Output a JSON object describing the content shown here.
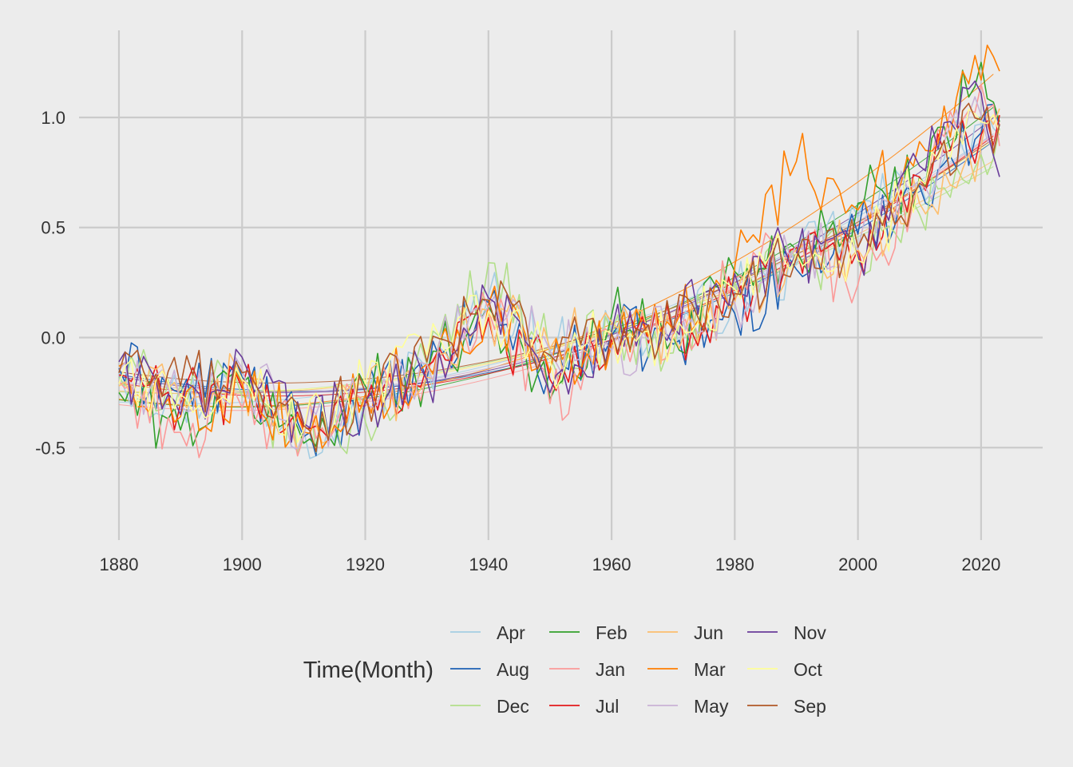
{
  "chart_data": {
    "type": "line",
    "title": "",
    "xlabel": "",
    "ylabel": "",
    "x_ticks": [
      1880,
      1900,
      1920,
      1940,
      1960,
      1980,
      2000,
      2020
    ],
    "y_ticks": [
      -0.5,
      0.0,
      0.5,
      1.0
    ],
    "y_tick_labels": [
      "-0.5",
      "0.0",
      "0.5",
      "1.0"
    ],
    "xlim": [
      1873,
      2030
    ],
    "ylim": [
      -0.92,
      1.41
    ],
    "grid": true,
    "legend": {
      "title": "Time(Month)",
      "position": "bottom",
      "columns": 4
    },
    "trend_lines": "smoothed quadratic fit per month series (thin lines)",
    "series": [
      {
        "name": "Apr",
        "color": "#a6cee3",
        "x": [
          1880,
          1890,
          1900,
          1910,
          1920,
          1930,
          1940,
          1950,
          1960,
          1970,
          1980,
          1990,
          2000,
          2010,
          2020,
          2023
        ],
        "values": [
          -0.16,
          -0.29,
          -0.21,
          -0.42,
          -0.27,
          -0.14,
          0.19,
          -0.06,
          0.03,
          0.06,
          0.19,
          0.33,
          0.55,
          0.71,
          0.97,
          0.92
        ]
      },
      {
        "name": "Aug",
        "color": "#1f61b4",
        "x": [
          1880,
          1890,
          1900,
          1910,
          1920,
          1930,
          1940,
          1950,
          1960,
          1970,
          1980,
          1990,
          2000,
          2010,
          2020,
          2023
        ],
        "values": [
          -0.14,
          -0.25,
          -0.18,
          -0.45,
          -0.28,
          -0.19,
          0.16,
          -0.15,
          0.01,
          -0.03,
          0.11,
          0.31,
          0.47,
          0.69,
          0.93,
          0.96
        ]
      },
      {
        "name": "Dec",
        "color": "#b2df8a",
        "x": [
          1880,
          1890,
          1900,
          1910,
          1920,
          1930,
          1940,
          1950,
          1960,
          1970,
          1980,
          1990,
          2000,
          2010,
          2020,
          2023
        ],
        "values": [
          -0.18,
          -0.21,
          -0.27,
          -0.44,
          -0.38,
          -0.12,
          0.34,
          -0.08,
          0.02,
          -0.07,
          0.25,
          0.36,
          0.35,
          0.56,
          0.83,
          0.95
        ]
      },
      {
        "name": "Feb",
        "color": "#33a02c",
        "x": [
          1880,
          1890,
          1900,
          1910,
          1920,
          1930,
          1940,
          1950,
          1960,
          1970,
          1980,
          1990,
          2000,
          2010,
          2020,
          2023
        ],
        "values": [
          -0.25,
          -0.42,
          -0.21,
          -0.48,
          -0.22,
          -0.16,
          0.14,
          -0.28,
          0.1,
          0.0,
          0.3,
          0.4,
          0.61,
          0.73,
          1.25,
          0.98
        ]
      },
      {
        "name": "Jan",
        "color": "#fb9a99",
        "x": [
          1880,
          1890,
          1900,
          1910,
          1920,
          1930,
          1940,
          1950,
          1960,
          1970,
          1980,
          1990,
          2000,
          2010,
          2020,
          2023
        ],
        "values": [
          -0.2,
          -0.43,
          -0.32,
          -0.45,
          -0.3,
          -0.16,
          0.13,
          -0.3,
          0.0,
          0.02,
          0.27,
          0.39,
          0.24,
          0.71,
          1.15,
          0.87
        ]
      },
      {
        "name": "Jul",
        "color": "#e31a1c",
        "x": [
          1880,
          1890,
          1900,
          1910,
          1920,
          1930,
          1940,
          1950,
          1960,
          1970,
          1980,
          1990,
          2000,
          2010,
          2020,
          2023
        ],
        "values": [
          -0.17,
          -0.3,
          -0.23,
          -0.41,
          -0.31,
          -0.13,
          0.09,
          -0.19,
          -0.01,
          0.01,
          0.17,
          0.41,
          0.4,
          0.73,
          0.92,
          1.01
        ]
      },
      {
        "name": "Jun",
        "color": "#fdbf6f",
        "x": [
          1880,
          1890,
          1900,
          1910,
          1920,
          1930,
          1940,
          1950,
          1960,
          1970,
          1980,
          1990,
          2000,
          2010,
          2020,
          2023
        ],
        "values": [
          -0.22,
          -0.27,
          -0.19,
          -0.44,
          -0.29,
          -0.18,
          0.12,
          -0.05,
          0.07,
          0.01,
          0.16,
          0.4,
          0.4,
          0.61,
          0.87,
          1.04
        ]
      },
      {
        "name": "Mar",
        "color": "#ff7f00",
        "x": [
          1880,
          1890,
          1900,
          1910,
          1920,
          1930,
          1940,
          1950,
          1960,
          1970,
          1980,
          1990,
          2000,
          2010,
          2020,
          2023
        ],
        "values": [
          -0.13,
          -0.36,
          -0.21,
          -0.43,
          -0.26,
          -0.12,
          0.15,
          -0.16,
          -0.03,
          0.04,
          0.32,
          0.8,
          0.58,
          0.89,
          1.17,
          1.21
        ]
      },
      {
        "name": "May",
        "color": "#cab2d6",
        "x": [
          1880,
          1890,
          1900,
          1910,
          1920,
          1930,
          1940,
          1950,
          1960,
          1970,
          1980,
          1990,
          2000,
          2010,
          2020,
          2023
        ],
        "values": [
          -0.15,
          -0.31,
          -0.14,
          -0.45,
          -0.3,
          -0.12,
          0.14,
          -0.06,
          -0.06,
          0.02,
          0.16,
          0.42,
          0.4,
          0.71,
          1.01,
          0.97
        ]
      },
      {
        "name": "Nov",
        "color": "#6a3d9a",
        "x": [
          1880,
          1890,
          1900,
          1910,
          1920,
          1930,
          1940,
          1950,
          1960,
          1970,
          1980,
          1990,
          2000,
          2010,
          2020,
          2023
        ],
        "values": [
          -0.11,
          -0.35,
          -0.09,
          -0.39,
          -0.29,
          -0.19,
          0.18,
          -0.25,
          0.03,
          0.05,
          0.29,
          0.38,
          0.37,
          0.78,
          1.11,
          0.73
        ]
      },
      {
        "name": "Oct",
        "color": "#ffff99",
        "x": [
          1880,
          1890,
          1900,
          1910,
          1920,
          1930,
          1940,
          1950,
          1960,
          1970,
          1980,
          1990,
          2000,
          2010,
          2020,
          2023
        ],
        "values": [
          -0.21,
          -0.26,
          -0.19,
          -0.42,
          -0.21,
          -0.08,
          0.12,
          -0.1,
          0.02,
          0.0,
          0.22,
          0.38,
          0.35,
          0.72,
          0.98,
          0.93
        ]
      },
      {
        "name": "Sep",
        "color": "#b15928",
        "x": [
          1880,
          1890,
          1900,
          1910,
          1920,
          1930,
          1940,
          1950,
          1960,
          1970,
          1980,
          1990,
          2000,
          2010,
          2020,
          2023
        ],
        "values": [
          -0.16,
          -0.22,
          -0.16,
          -0.4,
          -0.25,
          -0.11,
          0.17,
          -0.08,
          0.02,
          0.03,
          0.2,
          0.36,
          0.41,
          0.7,
          0.99,
          0.97
        ]
      }
    ]
  }
}
